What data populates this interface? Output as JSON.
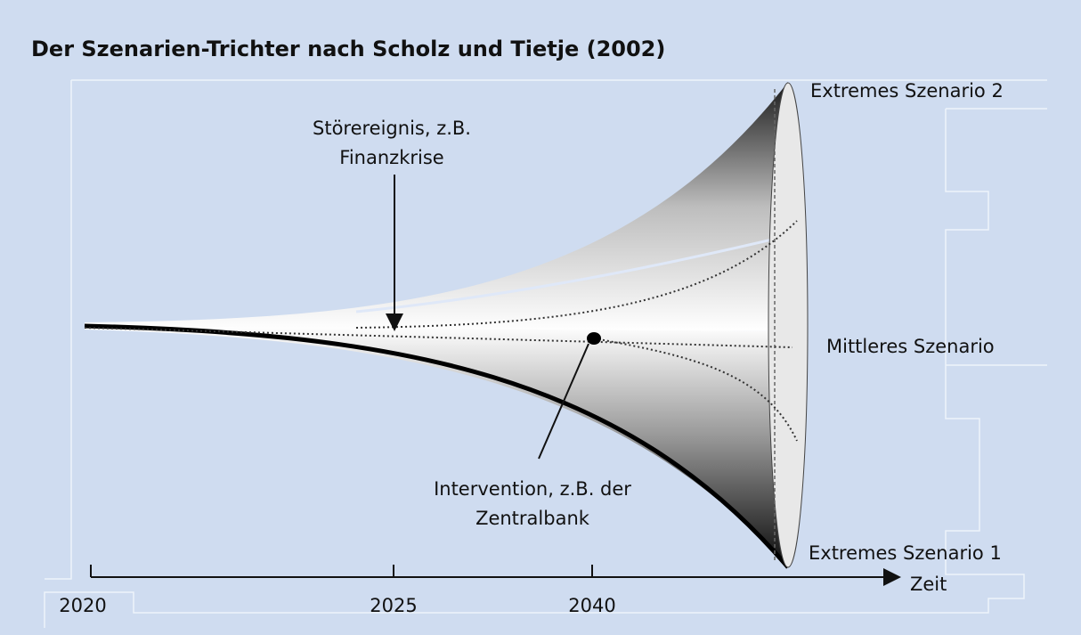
{
  "title": "Der Szenarien-Trichter nach Scholz und Tietje (2002)",
  "labels": {
    "disturbance": [
      "Störereignis, z.B.",
      "Finanzkrise"
    ],
    "intervention": [
      "Intervention, z.B. der",
      "Zentralbank"
    ],
    "extreme_2": "Extremes Szenario 2",
    "middle": "Mittleres Szenario",
    "extreme_1": "Extremes Szenario 1"
  },
  "axis": {
    "label": "Zeit",
    "ticks": [
      "2020",
      "2025",
      "2040"
    ]
  }
}
